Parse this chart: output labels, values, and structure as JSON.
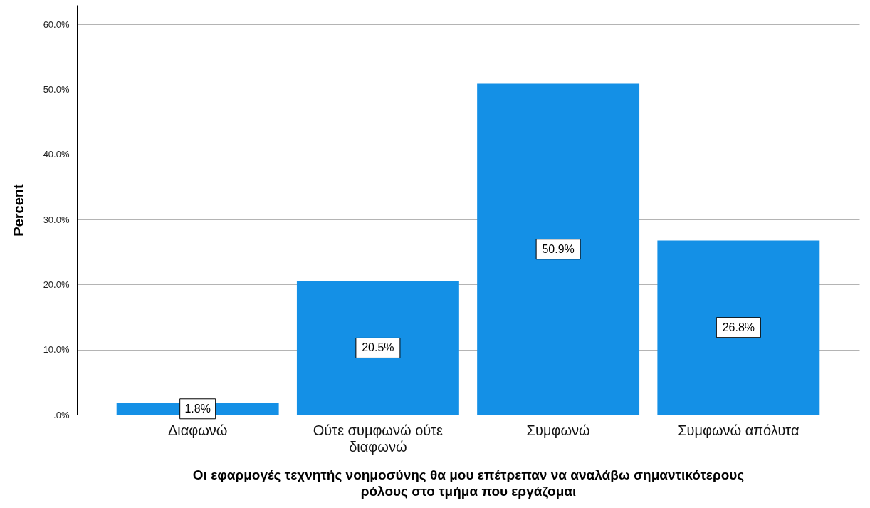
{
  "chart_data": {
    "type": "bar",
    "categories": [
      "Διαφωνώ",
      "Ούτε συμφωνώ ούτε διαφωνώ",
      "Συμφωνώ",
      "Συμφωνώ απόλυτα"
    ],
    "values": [
      1.8,
      20.5,
      50.9,
      26.8
    ],
    "value_labels": [
      "1.8%",
      "20.5%",
      "50.9%",
      "26.8%"
    ],
    "color": "#1490e6",
    "xlabel": "Οι εφαρμογές    τεχνητής νοημοσύνης   θα μου επέτρεπαν  να αναλάβω  σημαντικότερους ρόλους στο τμήμα  που εργάζομαι",
    "ylabel": "Percent",
    "ylim": [
      0,
      63
    ],
    "yticks": [
      {
        "value": 0,
        "label": ".0%"
      },
      {
        "value": 10,
        "label": "10.0%"
      },
      {
        "value": 20,
        "label": "20.0%"
      },
      {
        "value": 30,
        "label": "30.0%"
      },
      {
        "value": 40,
        "label": "40.0%"
      },
      {
        "value": 50,
        "label": "50.0%"
      },
      {
        "value": 60,
        "label": "60.0%"
      }
    ],
    "grid": "y"
  }
}
